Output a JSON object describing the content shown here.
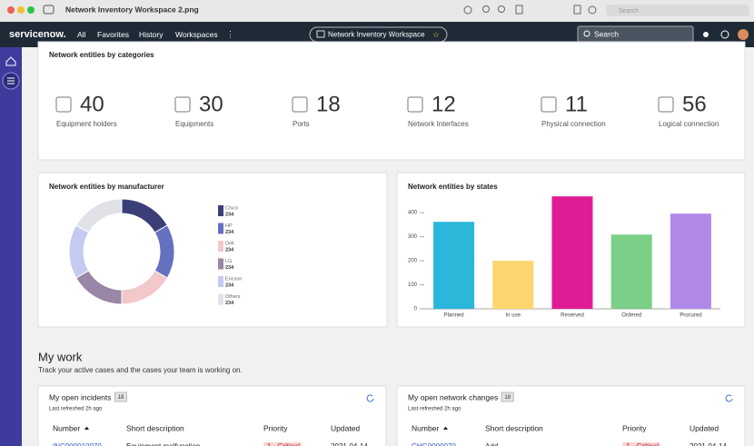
{
  "window": {
    "title": "Network Inventory Workspace 2.png",
    "search": "Search"
  },
  "nav": {
    "logo": "servicenow.",
    "links": [
      "All",
      "Favorites",
      "History",
      "Workspaces"
    ],
    "workspace": "Network Inventory Workspace",
    "search": "Search"
  },
  "categories_card": {
    "title": "Network entities by categories",
    "items": [
      {
        "value": 40,
        "label": "Equipment holders"
      },
      {
        "value": 30,
        "label": "Equipments"
      },
      {
        "value": 18,
        "label": "Ports"
      },
      {
        "value": 12,
        "label": "Network Interfaces"
      },
      {
        "value": 11,
        "label": "Physical connection"
      },
      {
        "value": 56,
        "label": "Logical connection"
      }
    ]
  },
  "manufacturer_chart": {
    "type": "pie",
    "donut": true,
    "title": "Network entities by manufacturer",
    "categories": [
      "Cisco",
      "HP",
      "Dell",
      "LG",
      "Ericson",
      "Others"
    ],
    "values": [
      234,
      234,
      234,
      234,
      234,
      234
    ],
    "colors": [
      "#3b3f78",
      "#6570bf",
      "#f2c8cb",
      "#9a86a6",
      "#c4caf0",
      "#e1e2e7"
    ]
  },
  "states_chart": {
    "type": "bar",
    "title": "Network entities by states",
    "categories": [
      "Planned",
      "In use",
      "Reserved",
      "Ordered",
      "Procured"
    ],
    "values": [
      362,
      200,
      468,
      309,
      396
    ],
    "colors": [
      "#2bb7da",
      "#fdd56f",
      "#e01c94",
      "#7ccf86",
      "#b089e8"
    ],
    "ylim": [
      0,
      480
    ],
    "yticks": [
      0,
      100,
      200,
      300,
      400
    ]
  },
  "my_work": {
    "title": "My work",
    "subtitle": "Track your active cases and the cases your team is working on."
  },
  "incidents": {
    "title": "My open incidents",
    "count": 18,
    "refreshed": "Last refreshed 2h ago",
    "columns": [
      "Number",
      "Short description",
      "Priority",
      "Updated"
    ],
    "rows": [
      [
        "INC000010070",
        "Equipment malfunction",
        "1 - Critical",
        "2021-04-14"
      ]
    ]
  },
  "changes": {
    "title": "My open network changes",
    "count": 18,
    "refreshed": "Last refreshed 2h ago",
    "columns": [
      "Number",
      "Short description",
      "Priority",
      "Updated"
    ],
    "rows": [
      [
        "CHG0000070",
        "Add",
        "1 - Critical",
        "2021-04-14"
      ]
    ]
  }
}
